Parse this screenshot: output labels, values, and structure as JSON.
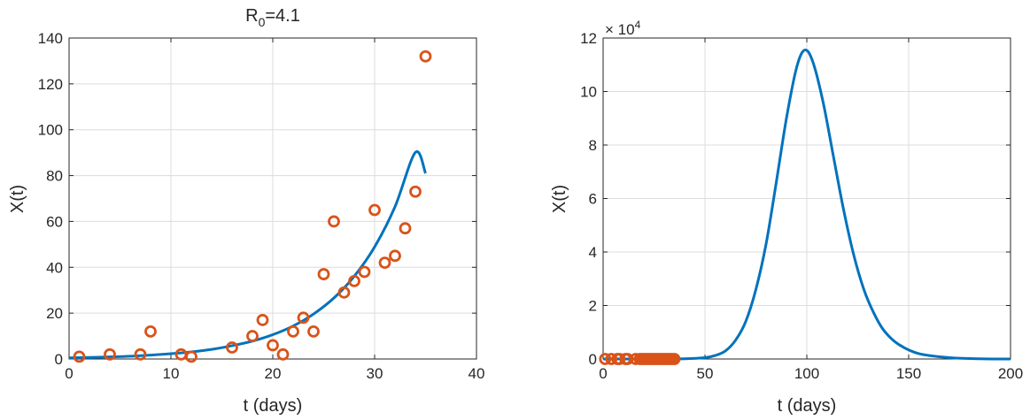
{
  "chart_data": [
    {
      "type": "scatter",
      "title_main": "R",
      "title_sub": "0",
      "title_rest": "=4.1",
      "xlabel": "t (days)",
      "ylabel": "X(t)",
      "xlim": [
        0,
        40
      ],
      "ylim": [
        0,
        140
      ],
      "xticks": [
        0,
        10,
        20,
        30,
        40
      ],
      "yticks": [
        0,
        20,
        40,
        60,
        80,
        100,
        120,
        140
      ],
      "grid": true,
      "series": [
        {
          "kind": "line",
          "color": "#0072BD",
          "x": [
            0,
            2,
            4,
            6,
            8,
            10,
            12,
            14,
            16,
            18,
            20,
            22,
            24,
            26,
            28,
            30,
            32,
            34,
            35
          ],
          "y": [
            0.5,
            0.7,
            0.9,
            1.2,
            1.7,
            2.3,
            3.1,
            4.2,
            5.8,
            7.8,
            10.6,
            14.4,
            19.6,
            26.6,
            36.1,
            48.9,
            66.4,
            90.1,
            81
          ]
        },
        {
          "kind": "markers",
          "color": "#D95319",
          "marker": "open-circle",
          "x": [
            1,
            4,
            7,
            8,
            11,
            12,
            16,
            18,
            19,
            20,
            21,
            22,
            23,
            24,
            25,
            26,
            27,
            28,
            29,
            30,
            31,
            32,
            33,
            34,
            35
          ],
          "y": [
            1,
            2,
            2,
            12,
            2,
            1,
            5,
            10,
            17,
            6,
            2,
            12,
            18,
            12,
            37,
            60,
            29,
            34,
            38,
            65,
            42,
            45,
            57,
            73,
            132
          ]
        }
      ]
    },
    {
      "type": "line",
      "xlabel": "t (days)",
      "ylabel": "X(t)",
      "xlim": [
        0,
        200
      ],
      "ylim": [
        0,
        12
      ],
      "xticks": [
        0,
        50,
        100,
        150,
        200
      ],
      "yticks": [
        0,
        2,
        4,
        6,
        8,
        10,
        12
      ],
      "y_exponent_label": "× 10",
      "y_exponent_power": "4",
      "grid": true,
      "series": [
        {
          "kind": "line",
          "color": "#0072BD",
          "peak_t": 99,
          "peak_value": 11.55,
          "x": [
            0,
            20,
            40,
            50,
            55,
            60,
            65,
            70,
            75,
            80,
            85,
            90,
            95,
            99,
            103,
            108,
            113,
            118,
            123,
            128,
            133,
            138,
            145,
            155,
            170,
            185,
            200
          ],
          "y": [
            0,
            0.001,
            0.01,
            0.05,
            0.13,
            0.3,
            0.7,
            1.4,
            2.6,
            4.3,
            6.6,
            9.0,
            10.9,
            11.55,
            11.1,
            9.6,
            7.6,
            5.6,
            3.9,
            2.6,
            1.7,
            1.05,
            0.55,
            0.2,
            0.05,
            0.01,
            0.0
          ]
        },
        {
          "kind": "markers",
          "color": "#D95319",
          "marker": "open-circle",
          "x": [
            1,
            4,
            7,
            8,
            11,
            12,
            16,
            18,
            19,
            20,
            21,
            22,
            23,
            24,
            25,
            26,
            27,
            28,
            29,
            30,
            31,
            32,
            33,
            34,
            35
          ],
          "y": [
            0,
            0,
            0,
            0,
            0,
            0,
            0,
            0,
            0,
            0,
            0,
            0,
            0,
            0,
            0,
            0,
            0,
            0,
            0,
            0,
            0,
            0,
            0,
            0,
            0
          ]
        }
      ]
    }
  ]
}
